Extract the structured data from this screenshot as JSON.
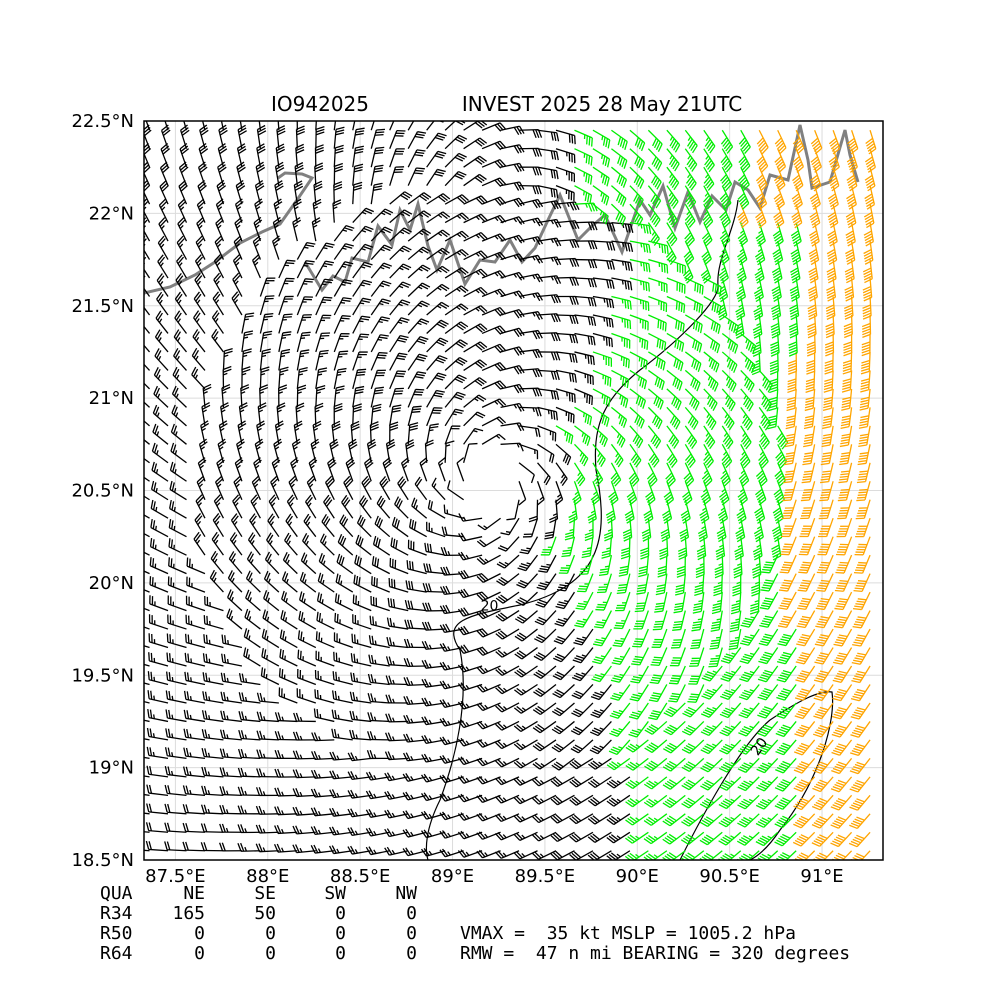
{
  "chart_data": {
    "type": "wind_barb_map",
    "storm_id": "IO942025",
    "title": "INVEST 2025 28 May 21UTC",
    "xlim": [
      87.33,
      91.33
    ],
    "ylim": [
      18.5,
      22.5
    ],
    "x_ticks": [
      87.5,
      88,
      88.5,
      89,
      89.5,
      90,
      90.5,
      91
    ],
    "x_tick_labels": [
      "87.5°E",
      "88°E",
      "88.5°E",
      "89°E",
      "89.5°E",
      "90°E",
      "90.5°E",
      "91°E"
    ],
    "y_ticks": [
      18.5,
      19,
      19.5,
      20,
      20.5,
      21,
      21.5,
      22,
      22.5
    ],
    "y_tick_labels": [
      "18.5°N",
      "19°N",
      "19.5°N",
      "20°N",
      "20.5°N",
      "21°N",
      "21.5°N",
      "22°N",
      "22.5°N"
    ],
    "grid": true,
    "center": [
      89.2,
      20.55
    ],
    "rmw_nmi": 47,
    "barb_spacing_deg": 0.1,
    "color_bins": [
      {
        "min_kt": 0,
        "max_kt": 34,
        "color": "#000000"
      },
      {
        "min_kt": 34,
        "max_kt": 50,
        "color": "#00ee00"
      },
      {
        "min_kt": 50,
        "max_kt": 64,
        "color": "#ffa500"
      }
    ],
    "contour_labels": [
      {
        "text": "20",
        "lon": 89.2,
        "lat": 19.85
      },
      {
        "text": "20",
        "lon": 90.68,
        "lat": 19.1
      }
    ]
  },
  "radii_table": {
    "header": [
      "QUA",
      "NE",
      "SE",
      "SW",
      "NW"
    ],
    "rows": [
      {
        "label": "R34",
        "values": [
          "165",
          "50",
          "0",
          "0"
        ]
      },
      {
        "label": "R50",
        "values": [
          "0",
          "0",
          "0",
          "0"
        ]
      },
      {
        "label": "R64",
        "values": [
          "0",
          "0",
          "0",
          "0"
        ]
      }
    ]
  },
  "summary": {
    "line1": "VMAX =  35 kt MSLP = 1005.2 hPa",
    "line2": "RMW =  47 n mi BEARING = 320 degrees"
  },
  "colors": {
    "below_34kt": "#000000",
    "gale": "#00ee00",
    "storm": "#ffa500",
    "coastline": "#808080",
    "grid": "#dcdcdc"
  }
}
